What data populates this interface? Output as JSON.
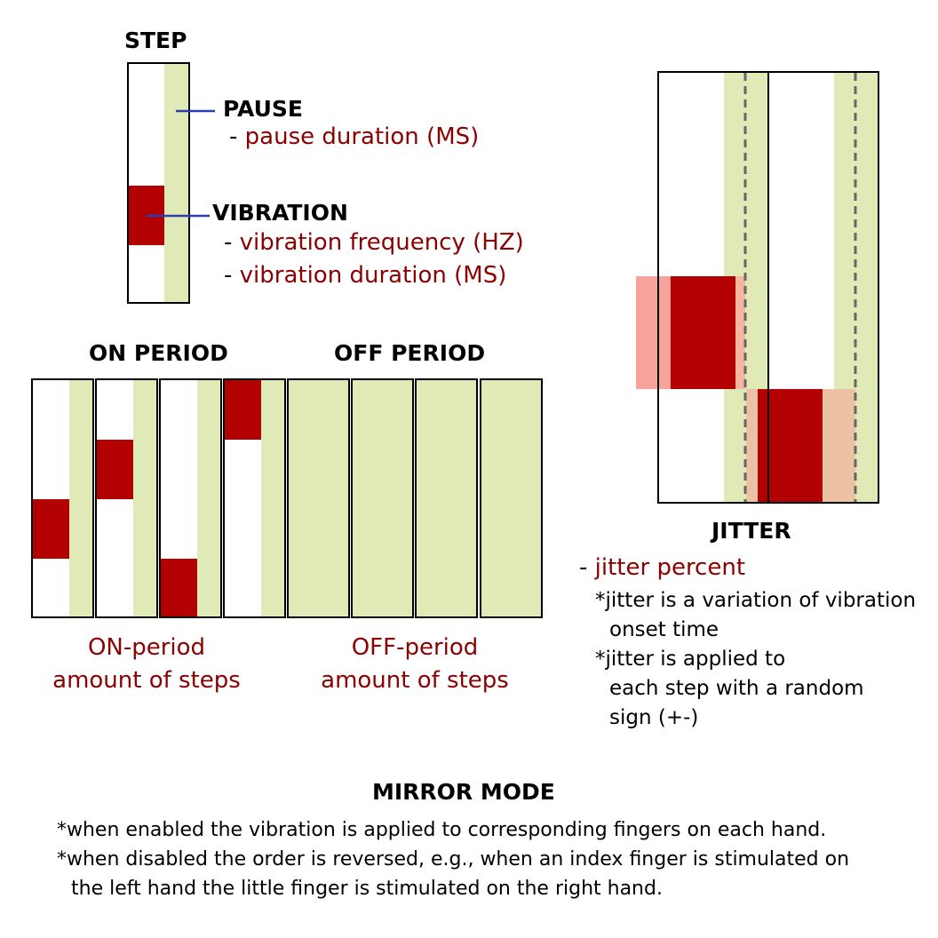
{
  "step": {
    "title": "STEP",
    "pause_label": "PAUSE",
    "pause_param": "pause duration (MS)",
    "vibration_label": "VIBRATION",
    "vibration_params": [
      "vibration frequency (HZ)",
      "vibration duration (MS)"
    ]
  },
  "periods": {
    "on_title": "ON PERIOD",
    "off_title": "OFF PERIOD",
    "on_caption": [
      "ON-period",
      "amount of steps"
    ],
    "off_caption": [
      "OFF-period",
      "amount of steps"
    ]
  },
  "jitter": {
    "title": "JITTER",
    "param": "jitter percent",
    "notes": [
      "*jitter is a variation of vibration",
      "onset time",
      "*jitter is applied to",
      "each step  with a random",
      "sign (+-)"
    ]
  },
  "mirror": {
    "title": "MIRROR MODE",
    "notes": [
      "*when enabled the vibration is applied to corresponding fingers on each hand.",
      "*when disabled the order is reversed, e.g., when an index finger is stimulated on",
      "the left hand the little finger is stimulated on the right hand."
    ]
  },
  "colors": {
    "vibration": "#b30000",
    "pause": "#dfeab7",
    "jitter_light": "#f7a29a",
    "jitter_peach": "#edc2a4",
    "leader": "#2c3fb0",
    "parameter_text": "#8b0000"
  }
}
